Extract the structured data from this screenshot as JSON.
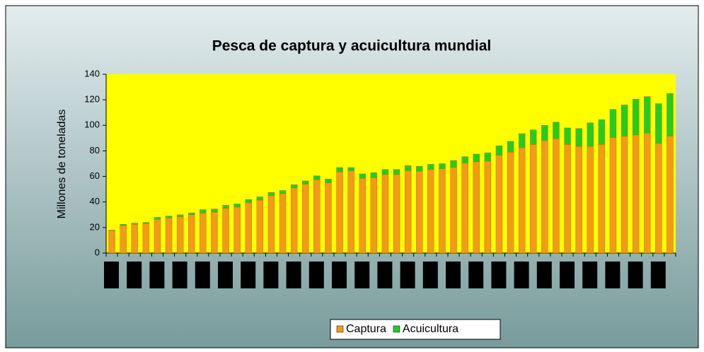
{
  "chart_data": {
    "type": "bar",
    "stacked": true,
    "title": "Pesca de captura y acuicultura mundial",
    "y_label": "Millones de toneladas",
    "categories": [
      null,
      null,
      null,
      null,
      null,
      null,
      null,
      null,
      null,
      null,
      null,
      null,
      null,
      null,
      null,
      null,
      null,
      null,
      null,
      null,
      null,
      null,
      null,
      null,
      null,
      null,
      null,
      null,
      null,
      null,
      null,
      null,
      null,
      null,
      null,
      null,
      null,
      null,
      null,
      null,
      null,
      null,
      null,
      null,
      null,
      null,
      null,
      null,
      null,
      null
    ],
    "series": [
      {
        "name": "Captura",
        "color": "#f29a1c",
        "values": [
          17.5,
          21.5,
          22.5,
          23,
          26.5,
          27.5,
          28.5,
          30,
          31.5,
          32,
          35,
          36,
          39.5,
          41.5,
          45,
          46.5,
          51,
          54,
          57.5,
          55,
          63.5,
          64.5,
          58.5,
          59,
          61.5,
          61.5,
          64.5,
          64,
          65.5,
          66,
          67,
          70.5,
          71.5,
          72,
          76.5,
          79,
          82.5,
          85,
          88,
          89.5,
          85,
          83.5,
          83.5,
          85,
          90.5,
          91.5,
          92.5,
          94,
          86,
          91.5
        ]
      },
      {
        "name": "Acuicultura",
        "color": "#22cc22",
        "values": [
          0.5,
          1,
          1,
          1,
          1.5,
          1.5,
          1.5,
          1.5,
          2.5,
          2.5,
          2.5,
          2.5,
          2.5,
          2.5,
          2.5,
          2.5,
          2.5,
          2.5,
          3,
          3,
          3.5,
          2.5,
          3.5,
          4,
          4,
          4,
          4,
          4,
          4,
          4,
          5.5,
          5,
          6,
          6.5,
          7.5,
          8.5,
          11,
          11.5,
          12,
          13,
          13,
          14,
          18.5,
          19.5,
          22,
          24.5,
          28,
          28.5,
          31,
          33.5
        ]
      }
    ],
    "ylim": [
      0,
      140
    ],
    "yticks": [
      0,
      20,
      40,
      60,
      80,
      100,
      120,
      140
    ],
    "legend": "bottom"
  }
}
